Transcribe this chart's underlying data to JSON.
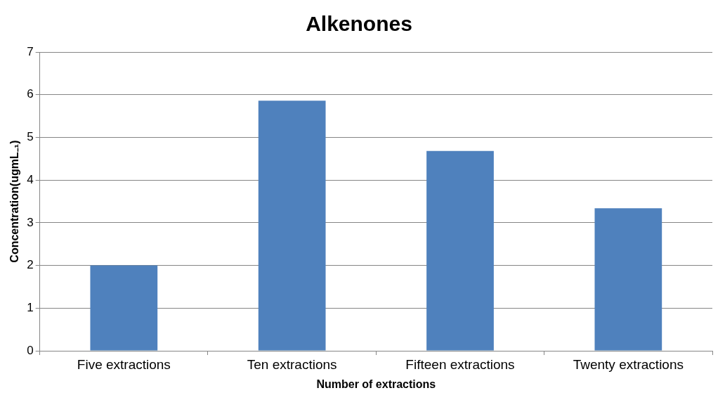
{
  "chart_data": {
    "type": "bar",
    "title": "Alkenones",
    "xlabel": "Number of extractions",
    "ylabel": "Concentration(ugmL₋₁)",
    "categories": [
      "Five extractions",
      "Ten extractions",
      "Fifteen extractions",
      "Twenty extractions"
    ],
    "values": [
      2.0,
      5.86,
      4.68,
      3.34
    ],
    "color": "#4f81bd",
    "ylim": [
      0,
      7
    ],
    "yticks": [
      0,
      1,
      2,
      3,
      4,
      5,
      6,
      7
    ],
    "grid": "y",
    "legend": false
  }
}
